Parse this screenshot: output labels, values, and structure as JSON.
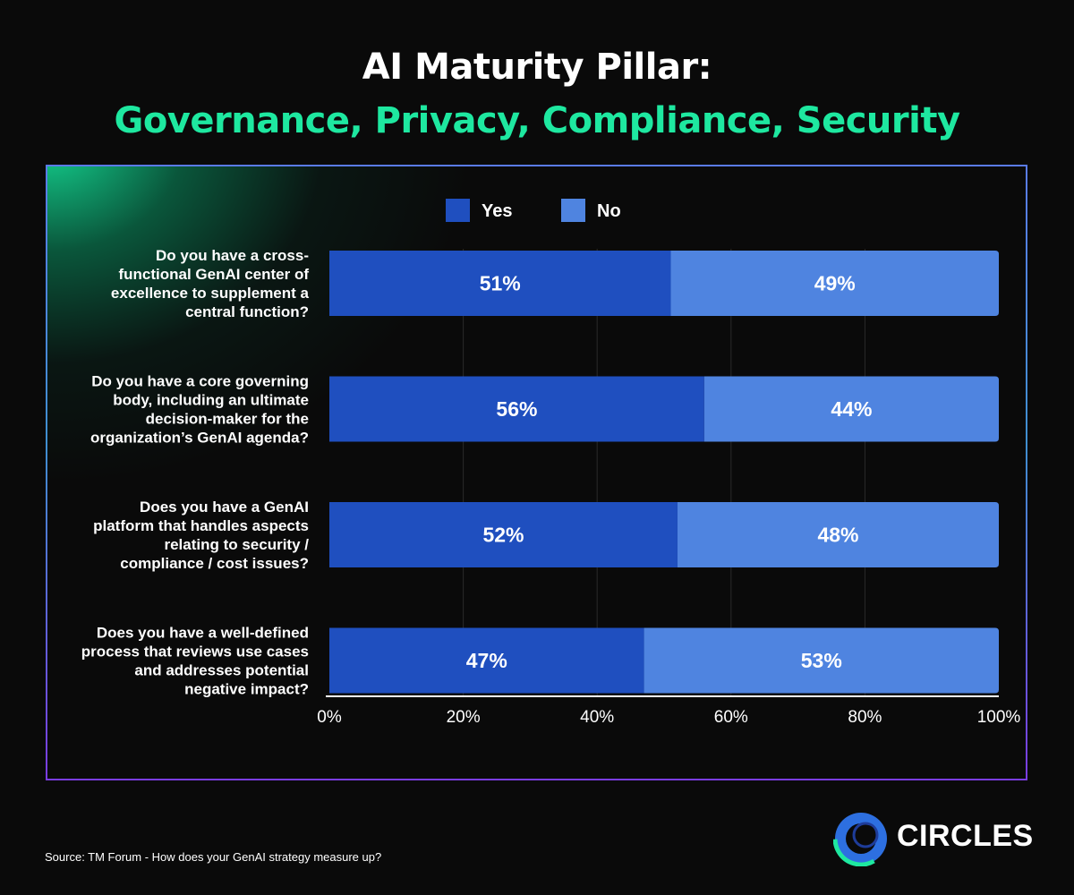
{
  "header": {
    "title_line1": "AI Maturity Pillar:",
    "title_line2": "Governance, Privacy, Compliance, Security"
  },
  "colors": {
    "yes": "#1f4fbf",
    "no": "#4f84e0",
    "title_accent": "#1ee8a0",
    "grid": "#2a2a2a",
    "axis": "#ffffff"
  },
  "chart_data": {
    "type": "bar",
    "orientation": "horizontal",
    "stacked": true,
    "categories": [
      "Do you have a cross-functional GenAI center of excellence to supplement a central function?",
      "Do you have a core governing body, including an ultimate decision-maker for the organization’s GenAI agenda?",
      "Does you have a GenAI platform that handles aspects relating to security / compliance / cost issues?",
      "Does you have a well-defined process that reviews use cases and addresses potential negative impact?"
    ],
    "category_lines": [
      [
        "Do you have a cross-",
        "functional GenAI center of",
        "excellence to supplement a",
        "central function?"
      ],
      [
        "Do you have a core governing",
        "body, including an ultimate",
        "decision-maker for the",
        "organization’s GenAI agenda?"
      ],
      [
        "Does you have a GenAI",
        "platform that handles aspects",
        "relating to security /",
        "compliance / cost issues?"
      ],
      [
        "Does you have a well-defined",
        "process that reviews use cases",
        "and addresses potential",
        "negative impact?"
      ]
    ],
    "series": [
      {
        "name": "Yes",
        "values": [
          51,
          56,
          52,
          47
        ],
        "labels": [
          "51%",
          "56%",
          "52%",
          "47%"
        ]
      },
      {
        "name": "No",
        "values": [
          49,
          44,
          48,
          53
        ],
        "labels": [
          "49%",
          "44%",
          "48%",
          "53%"
        ]
      }
    ],
    "xlim": [
      0,
      100
    ],
    "xticks": [
      0,
      20,
      40,
      60,
      80,
      100
    ],
    "xtick_labels": [
      "0%",
      "20%",
      "40%",
      "60%",
      "80%",
      "100%"
    ],
    "legend": [
      "Yes",
      "No"
    ],
    "legend_position": "top-center",
    "grid": true
  },
  "footer": {
    "source": "Source: TM Forum - How does your GenAI strategy measure up?",
    "brand": "CIRCLES"
  }
}
